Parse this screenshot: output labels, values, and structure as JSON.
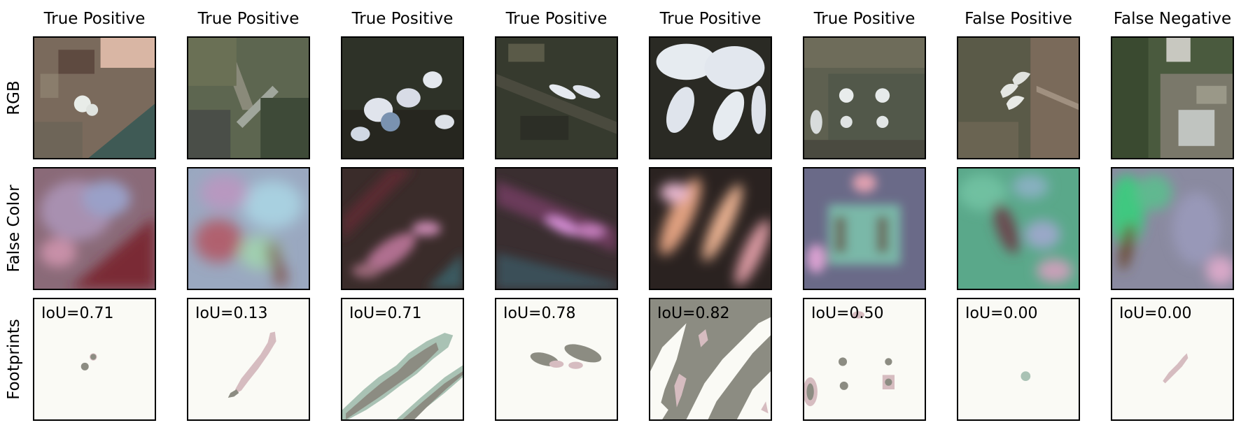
{
  "row_labels": [
    "RGB",
    "False Color",
    "Footprints"
  ],
  "columns": [
    {
      "title": "True Positive",
      "iou": "IoU=0.71"
    },
    {
      "title": "True Positive",
      "iou": "IoU=0.13"
    },
    {
      "title": "True Positive",
      "iou": "IoU=0.71"
    },
    {
      "title": "True Positive",
      "iou": "IoU=0.78"
    },
    {
      "title": "True Positive",
      "iou": "IoU=0.82"
    },
    {
      "title": "True Positive",
      "iou": "IoU=0.50"
    },
    {
      "title": "False Positive",
      "iou": "IoU=0.00"
    },
    {
      "title": "False Negative",
      "iou": "IoU=0.00"
    }
  ],
  "colors": {
    "overlap": "#8c8c82",
    "ground_truth_only": "#d6bcc0",
    "prediction_only": "#a9c2b4",
    "footprint_background": "#fafaf5"
  }
}
